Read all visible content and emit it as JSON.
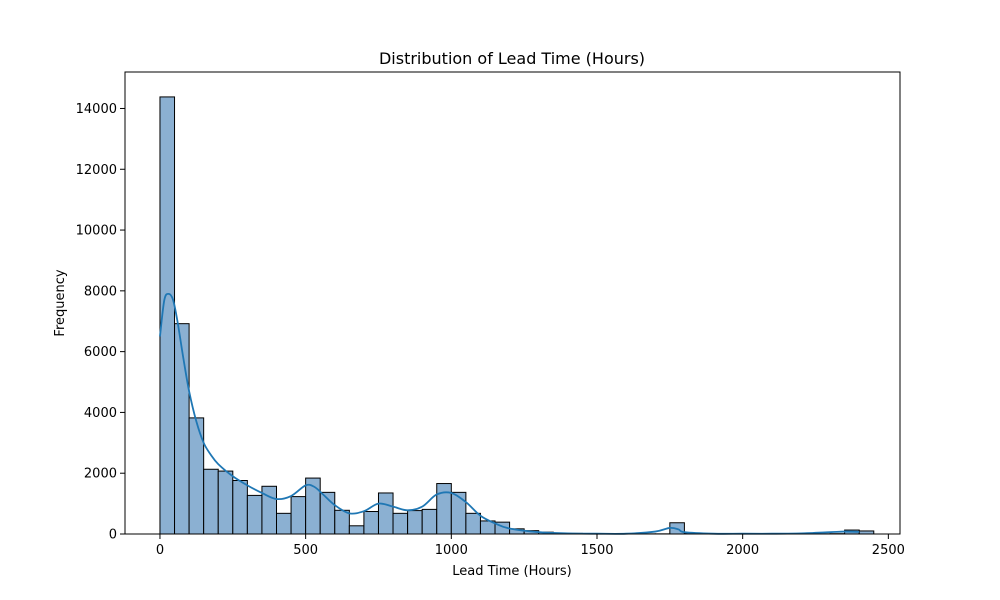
{
  "chart_data": {
    "type": "bar",
    "subtype": "histogram with kde",
    "title": "Distribution of Lead Time (Hours)",
    "xlabel": "Lead Time (Hours)",
    "ylabel": "Frequency",
    "xlim": [
      -120,
      2540
    ],
    "ylim": [
      0,
      15200
    ],
    "xticks": [
      0,
      500,
      1000,
      1500,
      2000,
      2500
    ],
    "yticks": [
      0,
      2000,
      4000,
      6000,
      8000,
      10000,
      12000,
      14000
    ],
    "grid": false,
    "colors": {
      "bar_fill": "#8bb0d2",
      "bar_edge": "#000000",
      "kde_line": "#1f77b4"
    },
    "bins": {
      "start": 0,
      "width": 50,
      "counts": [
        14380,
        6920,
        3820,
        2130,
        2070,
        1760,
        1270,
        1570,
        680,
        1230,
        1840,
        1370,
        780,
        270,
        740,
        1350,
        680,
        770,
        810,
        1660,
        1370,
        680,
        430,
        390,
        170,
        110,
        60,
        30,
        20,
        10,
        10,
        5,
        5,
        5,
        5,
        370,
        20,
        5,
        5,
        5,
        5,
        5,
        5,
        5,
        5,
        5,
        10,
        130,
        100
      ]
    },
    "kde": {
      "x": [
        0,
        15,
        30,
        45,
        60,
        80,
        100,
        125,
        150,
        175,
        200,
        250,
        300,
        350,
        400,
        450,
        500,
        530,
        560,
        600,
        650,
        700,
        750,
        800,
        850,
        900,
        950,
        1000,
        1050,
        1100,
        1150,
        1200,
        1300,
        1400,
        1500,
        1600,
        1700,
        1750,
        1780,
        1800,
        1900,
        2000,
        2100,
        2200,
        2300,
        2350,
        2400
      ],
      "y": [
        6500,
        7700,
        7900,
        7700,
        7000,
        5800,
        4700,
        3700,
        3000,
        2600,
        2300,
        1900,
        1600,
        1350,
        1150,
        1250,
        1600,
        1550,
        1300,
        950,
        680,
        750,
        1000,
        900,
        780,
        900,
        1300,
        1350,
        1050,
        600,
        350,
        180,
        60,
        20,
        10,
        10,
        80,
        200,
        150,
        60,
        10,
        10,
        10,
        20,
        60,
        80,
        70
      ]
    }
  }
}
